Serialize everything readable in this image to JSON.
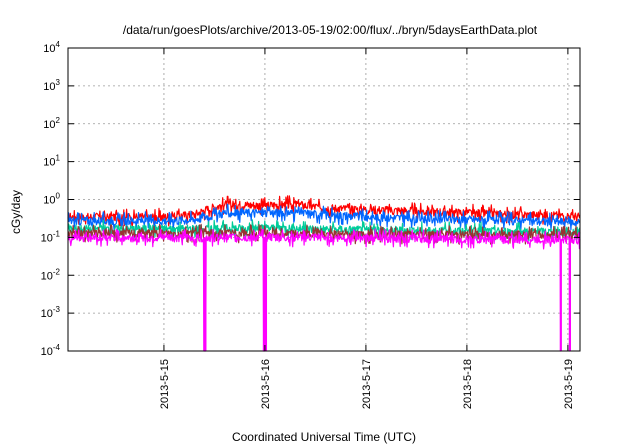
{
  "chart_data": {
    "type": "line",
    "title": "/data/run/goesPlots/archive/2013-05-19/02:00/flux/../bryn/5daysEarthData.plot",
    "xlabel": "Coordinated Universal Time (UTC)",
    "ylabel": "cGy/day",
    "yscale": "log",
    "ylim": [
      0.0001,
      10000
    ],
    "xlim": [
      14.05,
      19.12
    ],
    "y_ticks": [
      {
        "value": 0.0001,
        "base": "10",
        "exp": "-4"
      },
      {
        "value": 0.001,
        "base": "10",
        "exp": "-3"
      },
      {
        "value": 0.01,
        "base": "10",
        "exp": "-2"
      },
      {
        "value": 0.1,
        "base": "10",
        "exp": "-1"
      },
      {
        "value": 1,
        "base": "10",
        "exp": "0"
      },
      {
        "value": 10,
        "base": "10",
        "exp": "1"
      },
      {
        "value": 100,
        "base": "10",
        "exp": "2"
      },
      {
        "value": 1000,
        "base": "10",
        "exp": "3"
      },
      {
        "value": 10000,
        "base": "10",
        "exp": "4"
      }
    ],
    "x_ticks": [
      {
        "value": 15,
        "label": "2013-5-15"
      },
      {
        "value": 16,
        "label": "2013-5-16"
      },
      {
        "value": 17,
        "label": "2013-5-17"
      },
      {
        "value": 18,
        "label": "2013-5-18"
      },
      {
        "value": 19,
        "label": "2013-5-19"
      }
    ],
    "grid": true,
    "series": [
      {
        "color": "#ff0000",
        "x": [
          14.05,
          14.5,
          15.0,
          15.3,
          15.6,
          16.0,
          16.3,
          16.6,
          17.0,
          17.5,
          18.0,
          18.5,
          19.0,
          19.12
        ],
        "y": [
          0.35,
          0.35,
          0.35,
          0.4,
          0.75,
          0.7,
          0.75,
          0.6,
          0.55,
          0.5,
          0.45,
          0.4,
          0.38,
          0.35
        ]
      },
      {
        "color": "#0066ff",
        "x": [
          14.05,
          14.5,
          15.0,
          15.3,
          15.6,
          16.0,
          16.3,
          16.6,
          17.0,
          17.5,
          18.0,
          18.5,
          19.0,
          19.12
        ],
        "y": [
          0.28,
          0.28,
          0.28,
          0.3,
          0.45,
          0.45,
          0.45,
          0.4,
          0.35,
          0.32,
          0.3,
          0.28,
          0.26,
          0.25
        ]
      },
      {
        "color": "#00cc99",
        "x": [
          14.05,
          15.0,
          16.0,
          17.0,
          18.0,
          19.12
        ],
        "y": [
          0.17,
          0.17,
          0.18,
          0.16,
          0.15,
          0.14
        ]
      },
      {
        "color": "#993333",
        "x": [
          14.05,
          15.0,
          16.0,
          17.0,
          18.0,
          19.12
        ],
        "y": [
          0.13,
          0.13,
          0.13,
          0.12,
          0.12,
          0.12
        ]
      },
      {
        "color": "#ff00ff",
        "x": [
          14.05,
          15.0,
          16.0,
          17.0,
          18.0,
          19.12
        ],
        "y": [
          0.1,
          0.1,
          0.1,
          0.1,
          0.09,
          0.09
        ],
        "dips": [
          15.4,
          15.41,
          15.99,
          16.0,
          16.01,
          18.93,
          19.02
        ]
      }
    ]
  }
}
